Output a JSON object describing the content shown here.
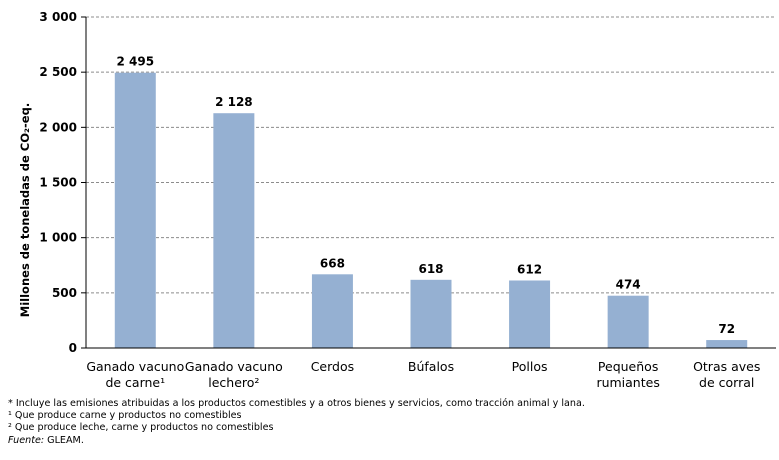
{
  "chart_data": {
    "type": "bar",
    "categories": [
      [
        "Ganado vacuno",
        "de carne¹"
      ],
      [
        "Ganado vacuno",
        "lechero²"
      ],
      [
        "Cerdos"
      ],
      [
        "Búfalos"
      ],
      [
        "Pollos"
      ],
      [
        "Pequeños",
        "rumiantes"
      ],
      [
        "Otras aves",
        "de corral"
      ]
    ],
    "values": [
      2495,
      2128,
      668,
      618,
      612,
      474,
      72
    ],
    "value_labels": [
      "2 495",
      "2 128",
      "668",
      "618",
      "612",
      "474",
      "72"
    ],
    "ylabel": "Millones de toneladas de CO₂-eq.",
    "ylim": [
      0,
      3000
    ],
    "yticks": [
      0,
      500,
      1000,
      1500,
      2000,
      2500,
      3000
    ],
    "ytick_labels": [
      "0",
      "500",
      "1 000",
      "1 500",
      "2 000",
      "2 500",
      "3 000"
    ],
    "grid": "horizontal dashed",
    "bar_color": "#95b0d2"
  },
  "notes": {
    "line1": "* Incluye las emisiones atribuidas a los productos comestibles y a otros bienes y servicios, como tracción animal y lana.",
    "line2": "¹ Que produce carne y productos no comestibles",
    "line3": "² Que produce leche, carne y productos no comestibles",
    "source_label": "Fuente:",
    "source_value": " GLEAM."
  }
}
